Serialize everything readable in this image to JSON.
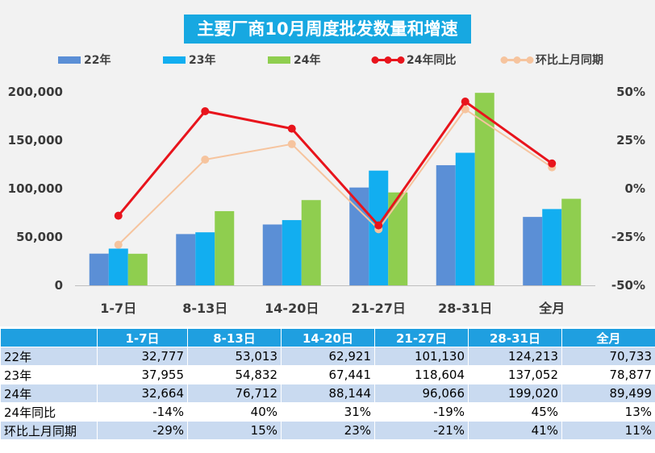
{
  "chart_data": {
    "type": "bar",
    "title": "主要厂商10月周度批发数量和增速",
    "categories": [
      "1-7日",
      "8-13日",
      "14-20日",
      "21-27日",
      "28-31日",
      "全月"
    ],
    "series": [
      {
        "name": "22年",
        "kind": "bar",
        "color": "#5b8fd6",
        "values": [
          32777,
          53013,
          62921,
          101130,
          124213,
          70733
        ]
      },
      {
        "name": "23年",
        "kind": "bar",
        "color": "#12aef0",
        "values": [
          37955,
          54832,
          67441,
          118604,
          137052,
          78877
        ]
      },
      {
        "name": "24年",
        "kind": "bar",
        "color": "#8fce4f",
        "values": [
          32664,
          76712,
          88144,
          96066,
          199020,
          89499
        ]
      },
      {
        "name": "24年同比",
        "kind": "line",
        "axis": "right",
        "color": "#e8141c",
        "values": [
          -14,
          40,
          31,
          -19,
          45,
          13
        ]
      },
      {
        "name": "环比上月同期",
        "kind": "line",
        "axis": "right",
        "color": "#f6c49e",
        "values": [
          -29,
          15,
          23,
          -21,
          41,
          11
        ]
      }
    ],
    "y_left": {
      "min": 0,
      "max": 200000,
      "ticks": [
        "0",
        "50,000",
        "100,000",
        "150,000",
        "200,000"
      ]
    },
    "y_right": {
      "min": -50,
      "max": 50,
      "unit": "%",
      "ticks": [
        "-50%",
        "-25%",
        "0%",
        "25%",
        "50%"
      ]
    },
    "legend_position": "top",
    "grid": false
  },
  "table": {
    "header": [
      "",
      "1-7日",
      "8-13日",
      "14-20日",
      "21-27日",
      "28-31日",
      "全月"
    ],
    "rows": [
      {
        "label": "22年",
        "cells": [
          "32,777",
          "53,013",
          "62,921",
          "101,130",
          "124,213",
          "70,733"
        ]
      },
      {
        "label": "23年",
        "cells": [
          "37,955",
          "54,832",
          "67,441",
          "118,604",
          "137,052",
          "78,877"
        ]
      },
      {
        "label": "24年",
        "cells": [
          "32,664",
          "76,712",
          "88,144",
          "96,066",
          "199,020",
          "89,499"
        ]
      },
      {
        "label": "24年同比",
        "cells": [
          "-14%",
          "40%",
          "31%",
          "-19%",
          "45%",
          "13%"
        ]
      },
      {
        "label": "环比上月同期",
        "cells": [
          "-29%",
          "15%",
          "23%",
          "-21%",
          "41%",
          "11%"
        ]
      }
    ]
  }
}
